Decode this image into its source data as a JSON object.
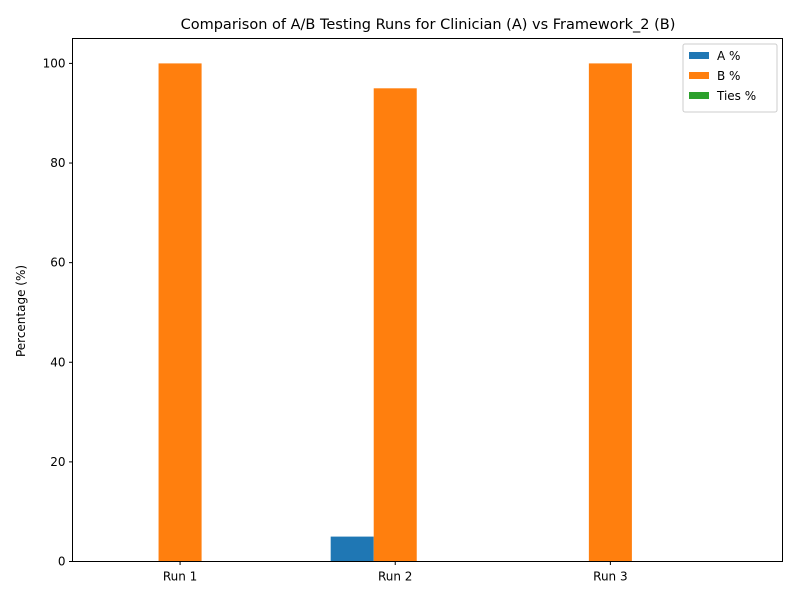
{
  "chart_data": {
    "type": "bar",
    "title": "Comparison of A/B Testing Runs for Clinician (A) vs Framework_2 (B)",
    "xlabel": "",
    "ylabel": "Percentage (%)",
    "categories": [
      "Run 1",
      "Run 2",
      "Run 3"
    ],
    "ylim": [
      0,
      105
    ],
    "yticks": [
      0,
      20,
      40,
      60,
      80,
      100
    ],
    "grid": false,
    "legend_position": "top-right",
    "series": [
      {
        "name": "A %",
        "color": "#1f77b4",
        "values": [
          0,
          5,
          0
        ]
      },
      {
        "name": "B %",
        "color": "#ff7f0e",
        "values": [
          100,
          95,
          100
        ]
      },
      {
        "name": "Ties %",
        "color": "#2ca02c",
        "values": [
          0,
          0,
          0
        ]
      }
    ]
  }
}
